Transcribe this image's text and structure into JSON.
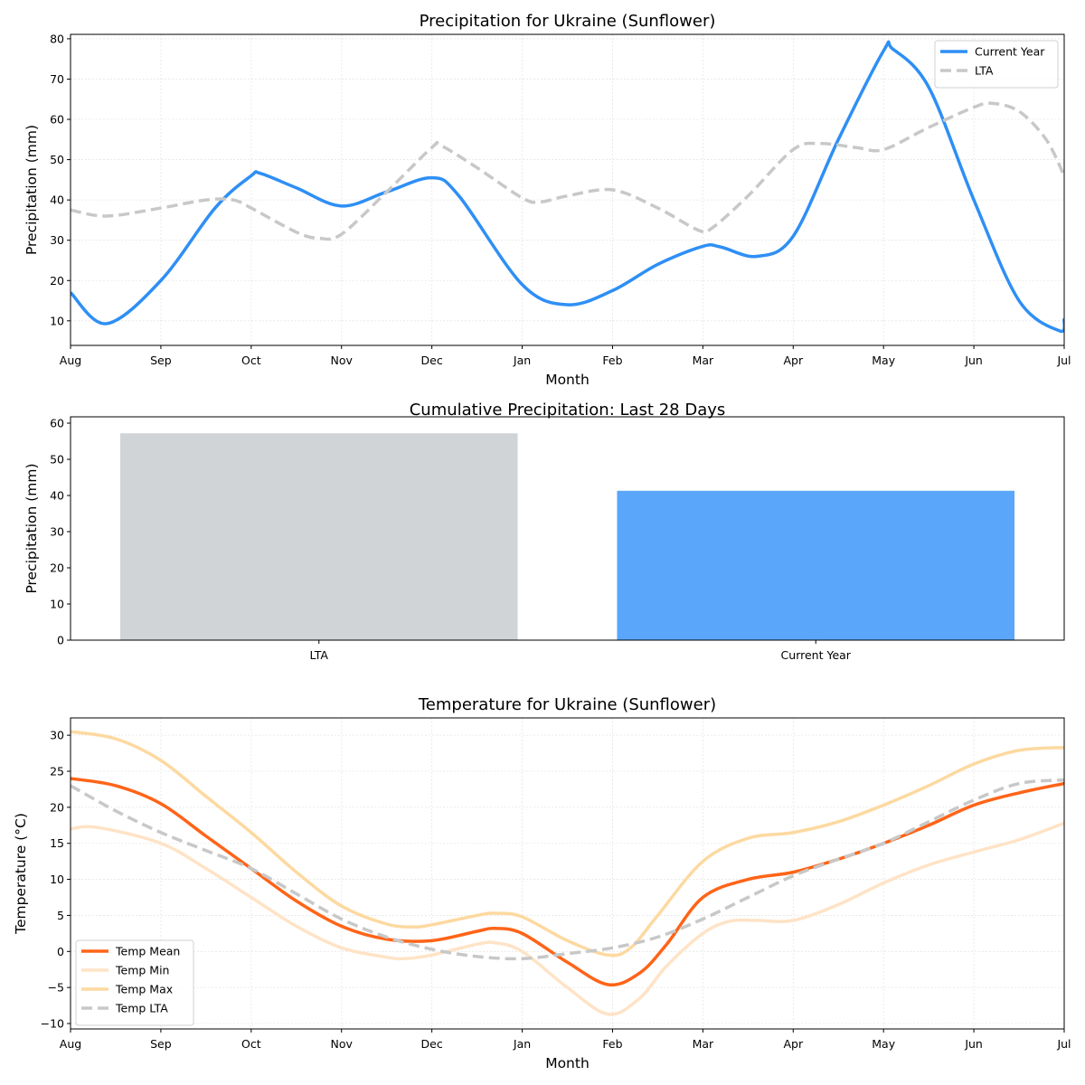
{
  "chart_data": [
    {
      "type": "line",
      "title": "Precipitation for Ukraine (Sunflower)",
      "xlabel": "Month",
      "ylabel": "Precipitation (mm)",
      "x_ticks": [
        "Aug",
        "Sep",
        "Oct",
        "Nov",
        "Dec",
        "Jan",
        "Feb",
        "Mar",
        "Apr",
        "May",
        "Jun",
        "Jul"
      ],
      "xlim": [
        0,
        11
      ],
      "ylim": [
        3.9,
        81.1
      ],
      "y_ticks": [
        10,
        20,
        30,
        40,
        50,
        60,
        70,
        80
      ],
      "grid": true,
      "legend_position": "top-right",
      "series": [
        {
          "name": "Current Year",
          "color": "#2e8ff5",
          "dash": false,
          "x": [
            0,
            0.4,
            1,
            1.6,
            2,
            2.1,
            2.5,
            3,
            3.5,
            4,
            4.3,
            5,
            5.5,
            6,
            6.5,
            7,
            7.2,
            7.6,
            8,
            8.5,
            9,
            9.1,
            9.5,
            10,
            10.5,
            10.95,
            11
          ],
          "y": [
            17,
            9.3,
            20,
            38,
            46,
            46.6,
            43,
            38.5,
            42,
            45.5,
            41,
            19,
            14,
            17.5,
            24,
            28.5,
            28.3,
            26,
            31,
            55,
            77,
            77.5,
            68,
            40,
            15,
            7.5,
            10.5
          ]
        },
        {
          "name": "LTA",
          "color": "#c8c8c8",
          "dash": true,
          "x": [
            0,
            0.4,
            1,
            1.5,
            1.8,
            2,
            2.5,
            2.75,
            3,
            3.5,
            4,
            4.1,
            4.5,
            5,
            5.2,
            5.5,
            6,
            6.5,
            6.95,
            7.1,
            7.5,
            8,
            8.3,
            8.7,
            9,
            9.5,
            10,
            10.2,
            10.5,
            10.8,
            11
          ],
          "y": [
            37.5,
            36,
            38,
            40,
            40,
            38,
            32,
            30.5,
            31.5,
            42,
            53,
            53.5,
            48,
            40.5,
            39.5,
            41,
            42.5,
            38,
            32.5,
            33,
            41,
            52.5,
            54,
            53,
            52.5,
            58,
            63,
            64,
            62,
            55,
            46
          ]
        }
      ]
    },
    {
      "type": "bar",
      "title": "Cumulative Precipitation: Last 28 Days",
      "xlabel": "",
      "ylabel": "Precipitation (mm)",
      "categories": [
        "LTA",
        "Current Year"
      ],
      "values": [
        57.2,
        41.3
      ],
      "colors": [
        "#d1d4d7",
        "#59a6fa"
      ],
      "ylim": [
        0,
        61.75
      ],
      "y_ticks": [
        0,
        10,
        20,
        30,
        40,
        50,
        60
      ],
      "grid": false
    },
    {
      "type": "line",
      "title": "Temperature for Ukraine (Sunflower)",
      "xlabel": "Month",
      "ylabel": "Temperature (°C)",
      "x_ticks": [
        "Aug",
        "Sep",
        "Oct",
        "Nov",
        "Dec",
        "Jan",
        "Feb",
        "Mar",
        "Apr",
        "May",
        "Jun",
        "Jul"
      ],
      "xlim": [
        0,
        11
      ],
      "ylim": [
        -10.75,
        32.4
      ],
      "y_ticks": [
        -10,
        -5,
        0,
        5,
        10,
        15,
        20,
        25,
        30
      ],
      "grid": true,
      "legend_position": "bottom-left",
      "series": [
        {
          "name": "Temp Mean",
          "color": "#ff6418",
          "dash": false,
          "x": [
            0,
            0.5,
            1,
            1.5,
            2,
            2.5,
            3,
            3.5,
            4,
            4.5,
            4.7,
            5,
            5.5,
            5.95,
            6.3,
            6.6,
            7,
            7.5,
            8,
            8.5,
            9,
            9.5,
            10,
            10.5,
            11
          ],
          "y": [
            24,
            23,
            20.5,
            16,
            11.5,
            7,
            3.5,
            1.7,
            1.5,
            2.8,
            3.2,
            2.5,
            -1.5,
            -4.6,
            -3,
            1,
            7.5,
            10,
            11,
            12.8,
            15,
            17.5,
            20.3,
            22,
            23.3
          ]
        },
        {
          "name": "Temp Min",
          "color": "#ffe3c6",
          "dash": false,
          "x": [
            0,
            0.3,
            1,
            1.5,
            2,
            2.5,
            3,
            3.5,
            3.7,
            4,
            4.5,
            4.7,
            5,
            5.5,
            5.95,
            6.3,
            6.6,
            7,
            7.3,
            7.6,
            8,
            8.5,
            9,
            9.5,
            10,
            10.5,
            11
          ],
          "y": [
            17,
            17.2,
            15,
            11.5,
            7.5,
            3.5,
            0.5,
            -0.8,
            -1,
            -0.5,
            1,
            1.2,
            0,
            -5,
            -8.7,
            -6.5,
            -2,
            2.5,
            4.2,
            4.3,
            4.3,
            6.5,
            9.5,
            12,
            13.8,
            15.5,
            17.8
          ]
        },
        {
          "name": "Temp Max",
          "color": "#fdd9a0",
          "dash": false,
          "x": [
            0,
            0.5,
            1,
            1.5,
            2,
            2.5,
            3,
            3.5,
            3.8,
            4,
            4.5,
            4.7,
            5,
            5.5,
            5.95,
            6.2,
            6.5,
            7,
            7.5,
            8,
            8.5,
            9,
            9.5,
            10,
            10.5,
            11
          ],
          "y": [
            30.5,
            29.5,
            26.5,
            21.5,
            16.5,
            11,
            6.3,
            3.8,
            3.4,
            3.7,
            5,
            5.3,
            4.8,
            1.5,
            -0.5,
            0.5,
            5,
            12.5,
            15.7,
            16.5,
            18,
            20.3,
            23,
            26,
            27.9,
            28.3
          ]
        },
        {
          "name": "Temp LTA",
          "color": "#c8c8c8",
          "dash": true,
          "x": [
            0,
            0.5,
            1,
            1.5,
            2,
            2.5,
            3,
            3.5,
            4,
            4.5,
            5,
            5.5,
            6,
            6.5,
            7,
            7.5,
            8,
            8.5,
            9,
            9.5,
            10,
            10.5,
            11
          ],
          "y": [
            23,
            19.5,
            16.5,
            14,
            11.5,
            8,
            4.5,
            2,
            0.3,
            -0.7,
            -1,
            -0.3,
            0.5,
            2,
            4.5,
            7.5,
            10.5,
            12.8,
            15,
            18,
            21,
            23.3,
            23.8
          ]
        }
      ]
    }
  ]
}
